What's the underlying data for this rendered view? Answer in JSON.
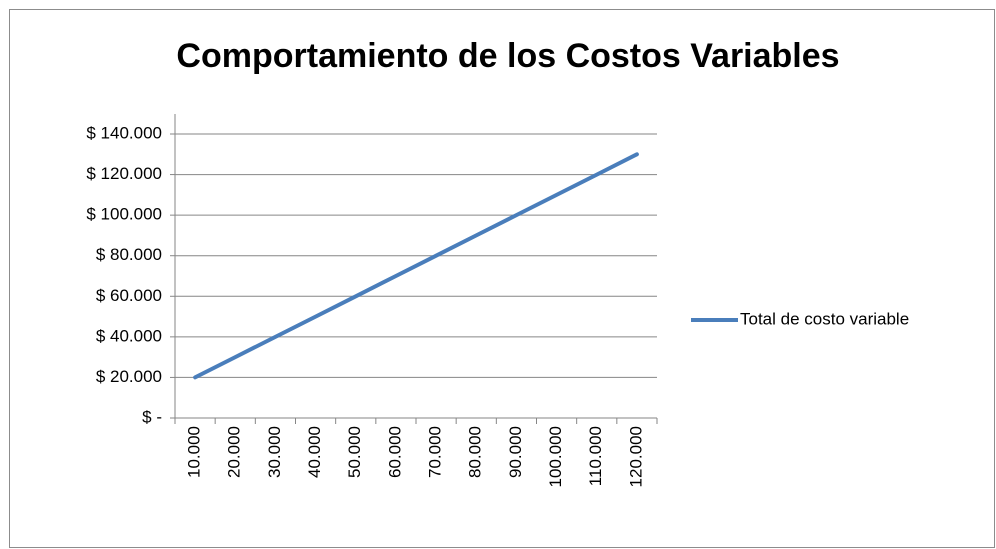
{
  "chart_data": {
    "type": "line",
    "title": "Comportamiento de los Costos Variables",
    "categories": [
      "10.000",
      "20.000",
      "30.000",
      "40.000",
      "50.000",
      "60.000",
      "70.000",
      "80.000",
      "90.000",
      "100.000",
      "110.000",
      "120.000"
    ],
    "series": [
      {
        "name": "Total de costo variable",
        "color": "#4a7ebb",
        "values": [
          20000,
          30000,
          40000,
          50000,
          60000,
          70000,
          80000,
          90000,
          100000,
          110000,
          120000,
          130000
        ]
      }
    ],
    "ylim": [
      0,
      140000
    ],
    "yticks": [
      {
        "value": 0,
        "label": "$ -"
      },
      {
        "value": 20000,
        "label": "$ 20.000"
      },
      {
        "value": 40000,
        "label": "$ 40.000"
      },
      {
        "value": 60000,
        "label": "$ 60.000"
      },
      {
        "value": 80000,
        "label": "$ 80.000"
      },
      {
        "value": 100000,
        "label": "$ 100.000"
      },
      {
        "value": 120000,
        "label": "$ 120.000"
      },
      {
        "value": 140000,
        "label": "$ 140.000"
      }
    ],
    "grid": true,
    "legend": "right"
  }
}
